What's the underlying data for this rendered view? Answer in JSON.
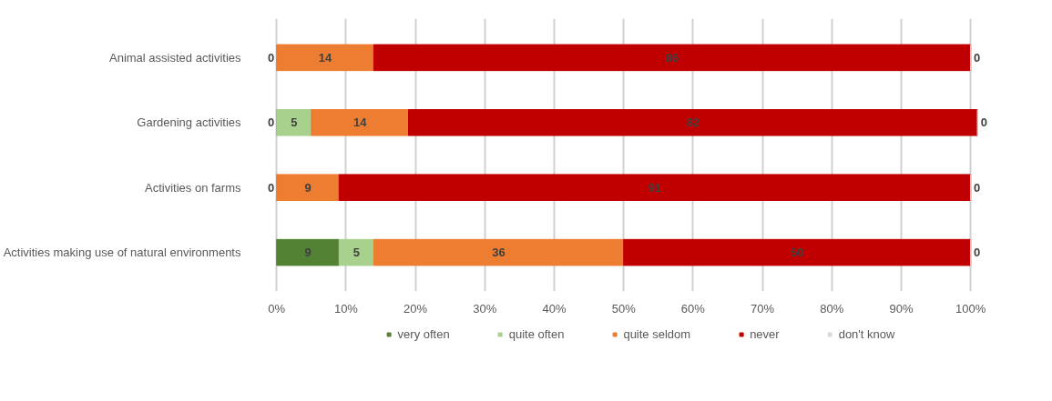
{
  "chart_data": {
    "type": "bar",
    "orientation": "horizontal",
    "stacked": true,
    "categories": [
      "Animal assisted activities",
      "Gardening activities",
      "Activities on farms",
      "Activities making use of natural environments"
    ],
    "series": [
      {
        "name": "very often",
        "color": "#548235",
        "values": [
          0,
          0,
          0,
          9
        ],
        "value_labels": [
          "0",
          "0",
          "0",
          "9"
        ]
      },
      {
        "name": "quite often",
        "color": "#a9d18e",
        "values": [
          0,
          5,
          0,
          5
        ],
        "value_labels": [
          null,
          "5",
          null,
          "5"
        ]
      },
      {
        "name": "quite seldom",
        "color": "#ed7d31",
        "values": [
          14,
          14,
          9,
          36
        ],
        "value_labels": [
          "14",
          "14",
          "9",
          "36"
        ]
      },
      {
        "name": "never",
        "color": "#c00000",
        "values": [
          86,
          82,
          91,
          50
        ],
        "value_labels": [
          "86",
          "82",
          "91",
          "50"
        ]
      },
      {
        "name": "don't know",
        "color": "#d9d9d9",
        "values": [
          0,
          0,
          0,
          0
        ],
        "value_labels": [
          "0",
          "0",
          "0",
          "0"
        ]
      }
    ],
    "xlim": [
      0,
      101
    ],
    "xticks": [
      {
        "value": 0,
        "label": "0%"
      },
      {
        "value": 10,
        "label": "10%"
      },
      {
        "value": 20,
        "label": "20%"
      },
      {
        "value": 30,
        "label": "30%"
      },
      {
        "value": 40,
        "label": "40%"
      },
      {
        "value": 50,
        "label": "50%"
      },
      {
        "value": 60,
        "label": "60%"
      },
      {
        "value": 70,
        "label": "70%"
      },
      {
        "value": 80,
        "label": "80%"
      },
      {
        "value": 90,
        "label": "90%"
      },
      {
        "value": 100,
        "label": "100%"
      }
    ],
    "grid": "x",
    "legend": "bottom"
  }
}
